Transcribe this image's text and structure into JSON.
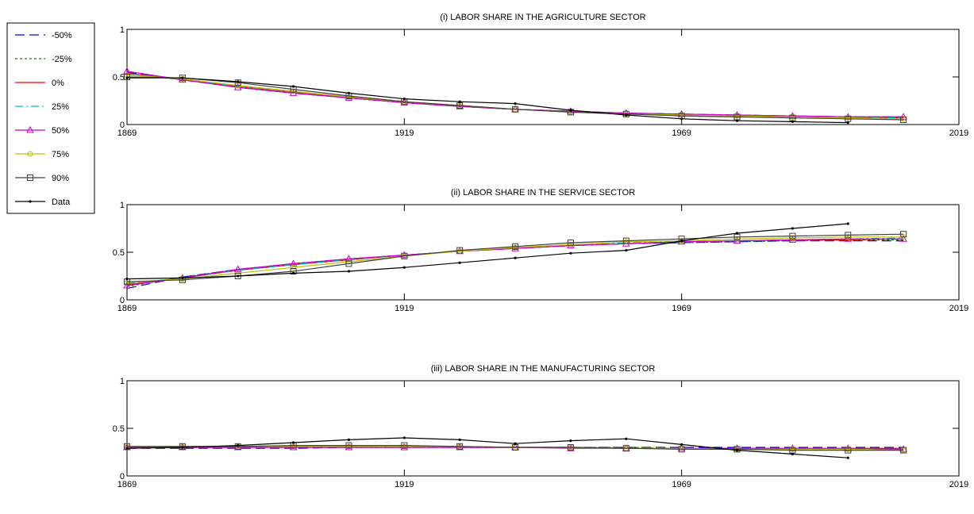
{
  "chart_data": [
    {
      "type": "line",
      "title": "(i)  LABOR SHARE IN THE AGRICULTURE SECTOR",
      "x": [
        1869,
        1879,
        1889,
        1899,
        1909,
        1919,
        1929,
        1939,
        1949,
        1959,
        1969,
        1979,
        1989,
        1999,
        2009
      ],
      "xlim": [
        1869,
        2019
      ],
      "xticks": [
        1869,
        1919,
        1969,
        2019
      ],
      "ylim": [
        0,
        1
      ],
      "yticks": [
        0,
        0.5,
        1
      ],
      "series": [
        {
          "name": "-50%",
          "color": "#0000ff",
          "dash": "12 6",
          "marker": "none",
          "values": [
            0.55,
            0.47,
            0.39,
            0.33,
            0.28,
            0.23,
            0.19,
            0.16,
            0.14,
            0.12,
            0.11,
            0.1,
            0.09,
            0.08,
            0.08
          ]
        },
        {
          "name": "-25%",
          "color": "#008000",
          "dash": "3 3",
          "marker": "none",
          "values": [
            0.54,
            0.47,
            0.39,
            0.33,
            0.28,
            0.23,
            0.19,
            0.16,
            0.14,
            0.12,
            0.11,
            0.1,
            0.09,
            0.08,
            0.08
          ]
        },
        {
          "name": "0%",
          "color": "#ff0000",
          "dash": "none",
          "marker": "none",
          "values": [
            0.54,
            0.47,
            0.4,
            0.34,
            0.28,
            0.23,
            0.19,
            0.16,
            0.14,
            0.12,
            0.1,
            0.09,
            0.09,
            0.08,
            0.07
          ]
        },
        {
          "name": "25%",
          "color": "#00bfbf",
          "dash": "10 4 2 4",
          "marker": "none",
          "values": [
            0.53,
            0.48,
            0.4,
            0.34,
            0.29,
            0.24,
            0.19,
            0.16,
            0.14,
            0.12,
            0.1,
            0.09,
            0.08,
            0.08,
            0.07
          ]
        },
        {
          "name": "50%",
          "color": "#cc00cc",
          "dash": "none",
          "marker": "triangle",
          "values": [
            0.56,
            0.47,
            0.39,
            0.33,
            0.28,
            0.23,
            0.19,
            0.16,
            0.14,
            0.12,
            0.11,
            0.1,
            0.09,
            0.08,
            0.08
          ]
        },
        {
          "name": "75%",
          "color": "#bfbf00",
          "dash": "none",
          "marker": "circle",
          "values": [
            0.52,
            0.48,
            0.41,
            0.35,
            0.29,
            0.24,
            0.2,
            0.16,
            0.13,
            0.11,
            0.1,
            0.09,
            0.08,
            0.07,
            0.06
          ]
        },
        {
          "name": "90%",
          "color": "#404040",
          "dash": "none",
          "marker": "square",
          "values": [
            0.5,
            0.49,
            0.44,
            0.37,
            0.3,
            0.24,
            0.2,
            0.16,
            0.13,
            0.11,
            0.09,
            0.08,
            0.07,
            0.06,
            0.05
          ]
        },
        {
          "name": "Data",
          "color": "#000000",
          "dash": "none",
          "marker": "dot",
          "values": [
            0.49,
            0.49,
            0.45,
            0.4,
            0.33,
            0.27,
            0.24,
            0.22,
            0.15,
            0.1,
            0.06,
            0.04,
            0.03,
            0.02,
            null
          ]
        }
      ]
    },
    {
      "type": "line",
      "title": "(ii)  LABOR SHARE IN THE SERVICE SECTOR",
      "x": [
        1869,
        1879,
        1889,
        1899,
        1909,
        1919,
        1929,
        1939,
        1949,
        1959,
        1969,
        1979,
        1989,
        1999,
        2009
      ],
      "xlim": [
        1869,
        2019
      ],
      "xticks": [
        1869,
        1919,
        1969,
        2019
      ],
      "ylim": [
        0,
        1
      ],
      "yticks": [
        0,
        0.5,
        1
      ],
      "series": [
        {
          "values": [
            0.12,
            0.24,
            0.32,
            0.38,
            0.43,
            0.47,
            0.51,
            0.54,
            0.57,
            0.59,
            0.6,
            0.61,
            0.62,
            0.62,
            0.62
          ]
        },
        {
          "values": [
            0.14,
            0.24,
            0.32,
            0.38,
            0.43,
            0.47,
            0.51,
            0.54,
            0.57,
            0.59,
            0.6,
            0.61,
            0.62,
            0.63,
            0.63
          ]
        },
        {
          "values": [
            0.16,
            0.23,
            0.31,
            0.37,
            0.42,
            0.47,
            0.51,
            0.54,
            0.57,
            0.59,
            0.61,
            0.62,
            0.63,
            0.63,
            0.64
          ]
        },
        {
          "values": [
            0.17,
            0.23,
            0.31,
            0.37,
            0.42,
            0.47,
            0.51,
            0.55,
            0.57,
            0.6,
            0.61,
            0.62,
            0.63,
            0.64,
            0.65
          ]
        },
        {
          "values": [
            0.15,
            0.23,
            0.32,
            0.38,
            0.43,
            0.47,
            0.51,
            0.54,
            0.57,
            0.59,
            0.61,
            0.62,
            0.63,
            0.64,
            0.64
          ]
        },
        {
          "values": [
            0.18,
            0.22,
            0.28,
            0.34,
            0.4,
            0.46,
            0.51,
            0.55,
            0.58,
            0.61,
            0.62,
            0.64,
            0.65,
            0.66,
            0.66
          ]
        },
        {
          "values": [
            0.19,
            0.21,
            0.25,
            0.3,
            0.38,
            0.46,
            0.52,
            0.56,
            0.6,
            0.62,
            0.64,
            0.66,
            0.67,
            0.68,
            0.69
          ]
        },
        {
          "values": [
            0.22,
            0.23,
            0.25,
            0.28,
            0.3,
            0.34,
            0.39,
            0.44,
            0.49,
            0.52,
            0.62,
            0.7,
            0.75,
            0.8,
            null
          ]
        }
      ]
    },
    {
      "type": "line",
      "title": "(iii)  LABOR SHARE IN THE MANUFACTURING SECTOR",
      "x": [
        1869,
        1879,
        1889,
        1899,
        1909,
        1919,
        1929,
        1939,
        1949,
        1959,
        1969,
        1979,
        1989,
        1999,
        2009
      ],
      "xlim": [
        1869,
        2019
      ],
      "xticks": [
        1869,
        1919,
        1969,
        2019
      ],
      "ylim": [
        0,
        1
      ],
      "yticks": [
        0,
        0.5,
        1
      ],
      "series": [
        {
          "values": [
            0.29,
            0.29,
            0.29,
            0.29,
            0.3,
            0.3,
            0.3,
            0.3,
            0.3,
            0.3,
            0.3,
            0.3,
            0.3,
            0.3,
            0.3
          ]
        },
        {
          "values": [
            0.3,
            0.3,
            0.3,
            0.3,
            0.3,
            0.3,
            0.3,
            0.3,
            0.3,
            0.3,
            0.29,
            0.29,
            0.29,
            0.29,
            0.29
          ]
        },
        {
          "values": [
            0.3,
            0.3,
            0.3,
            0.3,
            0.3,
            0.3,
            0.3,
            0.3,
            0.3,
            0.29,
            0.29,
            0.29,
            0.29,
            0.29,
            0.29
          ]
        },
        {
          "values": [
            0.3,
            0.3,
            0.3,
            0.31,
            0.31,
            0.31,
            0.3,
            0.3,
            0.3,
            0.29,
            0.29,
            0.29,
            0.28,
            0.28,
            0.28
          ]
        },
        {
          "values": [
            0.3,
            0.3,
            0.3,
            0.3,
            0.3,
            0.3,
            0.3,
            0.3,
            0.29,
            0.29,
            0.29,
            0.29,
            0.29,
            0.29,
            0.28
          ]
        },
        {
          "values": [
            0.31,
            0.31,
            0.31,
            0.31,
            0.31,
            0.31,
            0.31,
            0.3,
            0.3,
            0.29,
            0.29,
            0.28,
            0.28,
            0.28,
            0.27
          ]
        },
        {
          "values": [
            0.31,
            0.31,
            0.31,
            0.32,
            0.32,
            0.32,
            0.31,
            0.3,
            0.3,
            0.29,
            0.28,
            0.28,
            0.27,
            0.27,
            0.27
          ]
        },
        {
          "values": [
            0.29,
            0.3,
            0.32,
            0.35,
            0.38,
            0.4,
            0.38,
            0.34,
            0.37,
            0.39,
            0.33,
            0.27,
            0.23,
            0.19,
            null
          ]
        }
      ]
    }
  ]
}
